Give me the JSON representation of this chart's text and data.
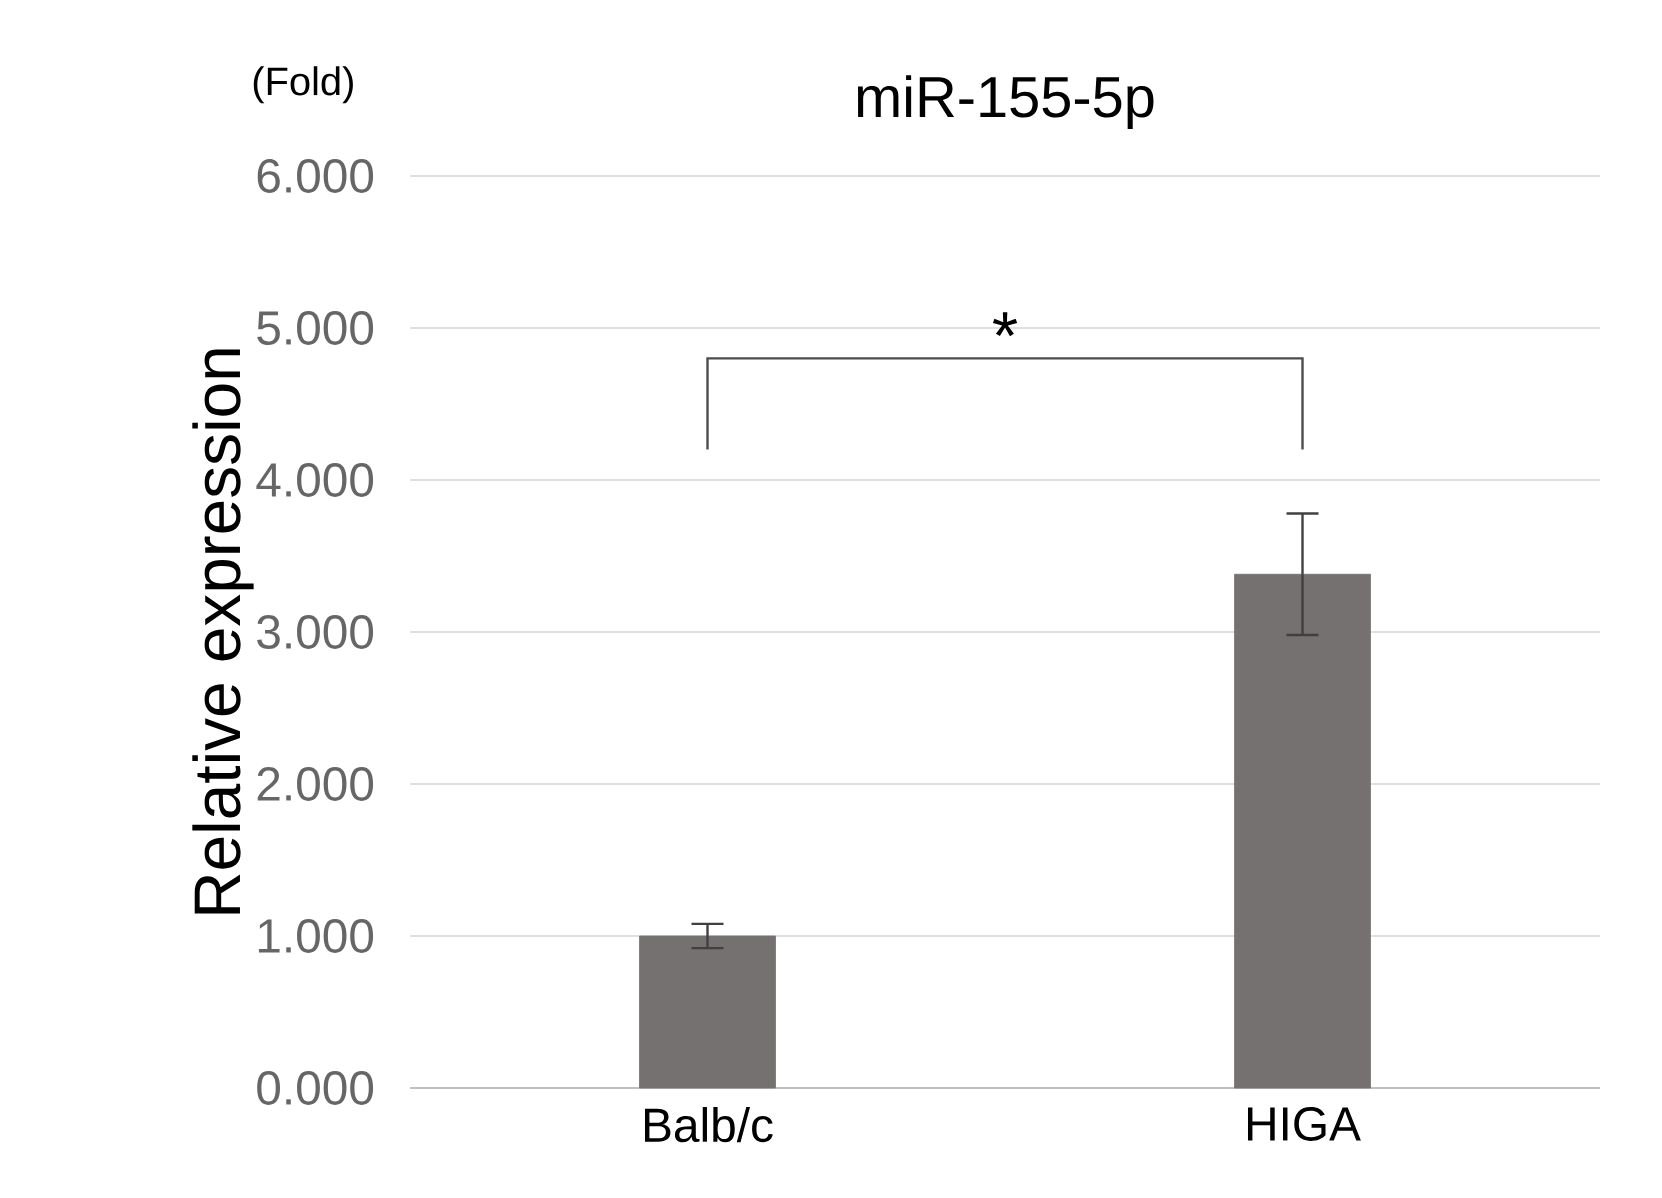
{
  "chart_data": {
    "type": "bar",
    "title": "miR-155-5p",
    "ylabel": "Relative expression",
    "categories": [
      "Balb/c",
      "HIGA"
    ],
    "values": [
      1.0,
      3.38
    ],
    "errors": [
      0.08,
      0.4
    ],
    "color": "#767171",
    "ylim": [
      0,
      6
    ],
    "yticks": [
      {
        "value": 0,
        "label": "0.000"
      },
      {
        "value": 1,
        "label": "1.000"
      },
      {
        "value": 2,
        "label": "2.000"
      },
      {
        "value": 3,
        "label": "3.000"
      },
      {
        "value": 4,
        "label": "4.000"
      },
      {
        "value": 5,
        "label": "5.000"
      },
      {
        "value": 6,
        "label": "6.000"
      }
    ],
    "grid": "y",
    "annotations": [
      "(Fold)",
      "*"
    ]
  }
}
